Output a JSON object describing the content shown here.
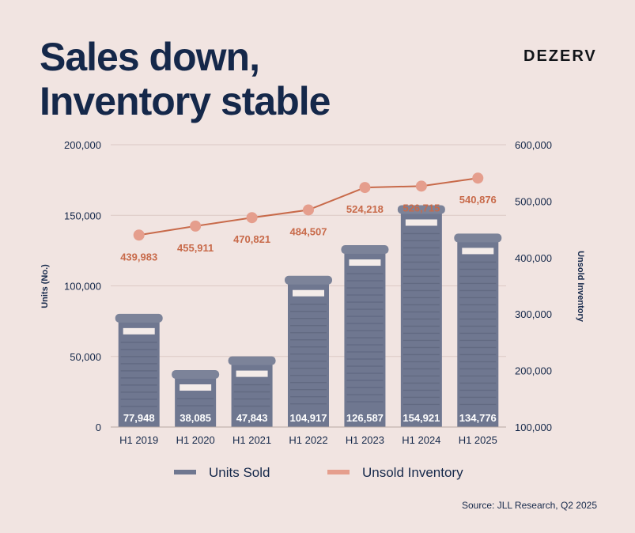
{
  "header": {
    "title_line1": "Sales down,",
    "title_line2": "Inventory stable",
    "brand": "DEZERV"
  },
  "source": "Source: JLL Research, Q2 2025",
  "colors": {
    "background": "#f1e4e1",
    "bar": "#6f7790",
    "line": "#c86a4a",
    "marker": "#e59e8d",
    "title": "#15284a"
  },
  "chart_data": {
    "type": "bar",
    "categories": [
      "H1 2019",
      "H1 2020",
      "H1 2021",
      "H1 2022",
      "H1 2023",
      "H1 2024",
      "H1 2025"
    ],
    "series": [
      {
        "name": "Units Sold",
        "type": "bar",
        "axis": "left",
        "values": [
          77948,
          38085,
          47843,
          104917,
          126587,
          154921,
          134776
        ],
        "labels": [
          "77,948",
          "38,085",
          "47,843",
          "104,917",
          "126,587",
          "154,921",
          "134,776"
        ]
      },
      {
        "name": "Unsold Inventory",
        "type": "line",
        "axis": "right",
        "values": [
          439983,
          455911,
          470821,
          484507,
          524218,
          526715,
          540876
        ],
        "labels": [
          "439,983",
          "455,911",
          "470,821",
          "484,507",
          "524,218",
          "526,715",
          "540,876"
        ]
      }
    ],
    "ylabel": "Units (No.)",
    "ylim": [
      0,
      200000
    ],
    "yticks": [
      "0",
      "50,000",
      "100,000",
      "150,000",
      "200,000"
    ],
    "y2label": "Unsold Inventory",
    "y2lim": [
      100000,
      600000
    ],
    "y2ticks": [
      "100,000",
      "200,000",
      "300,000",
      "400,000",
      "500,000",
      "600,000"
    ],
    "grid": true,
    "legend": "bottom"
  }
}
